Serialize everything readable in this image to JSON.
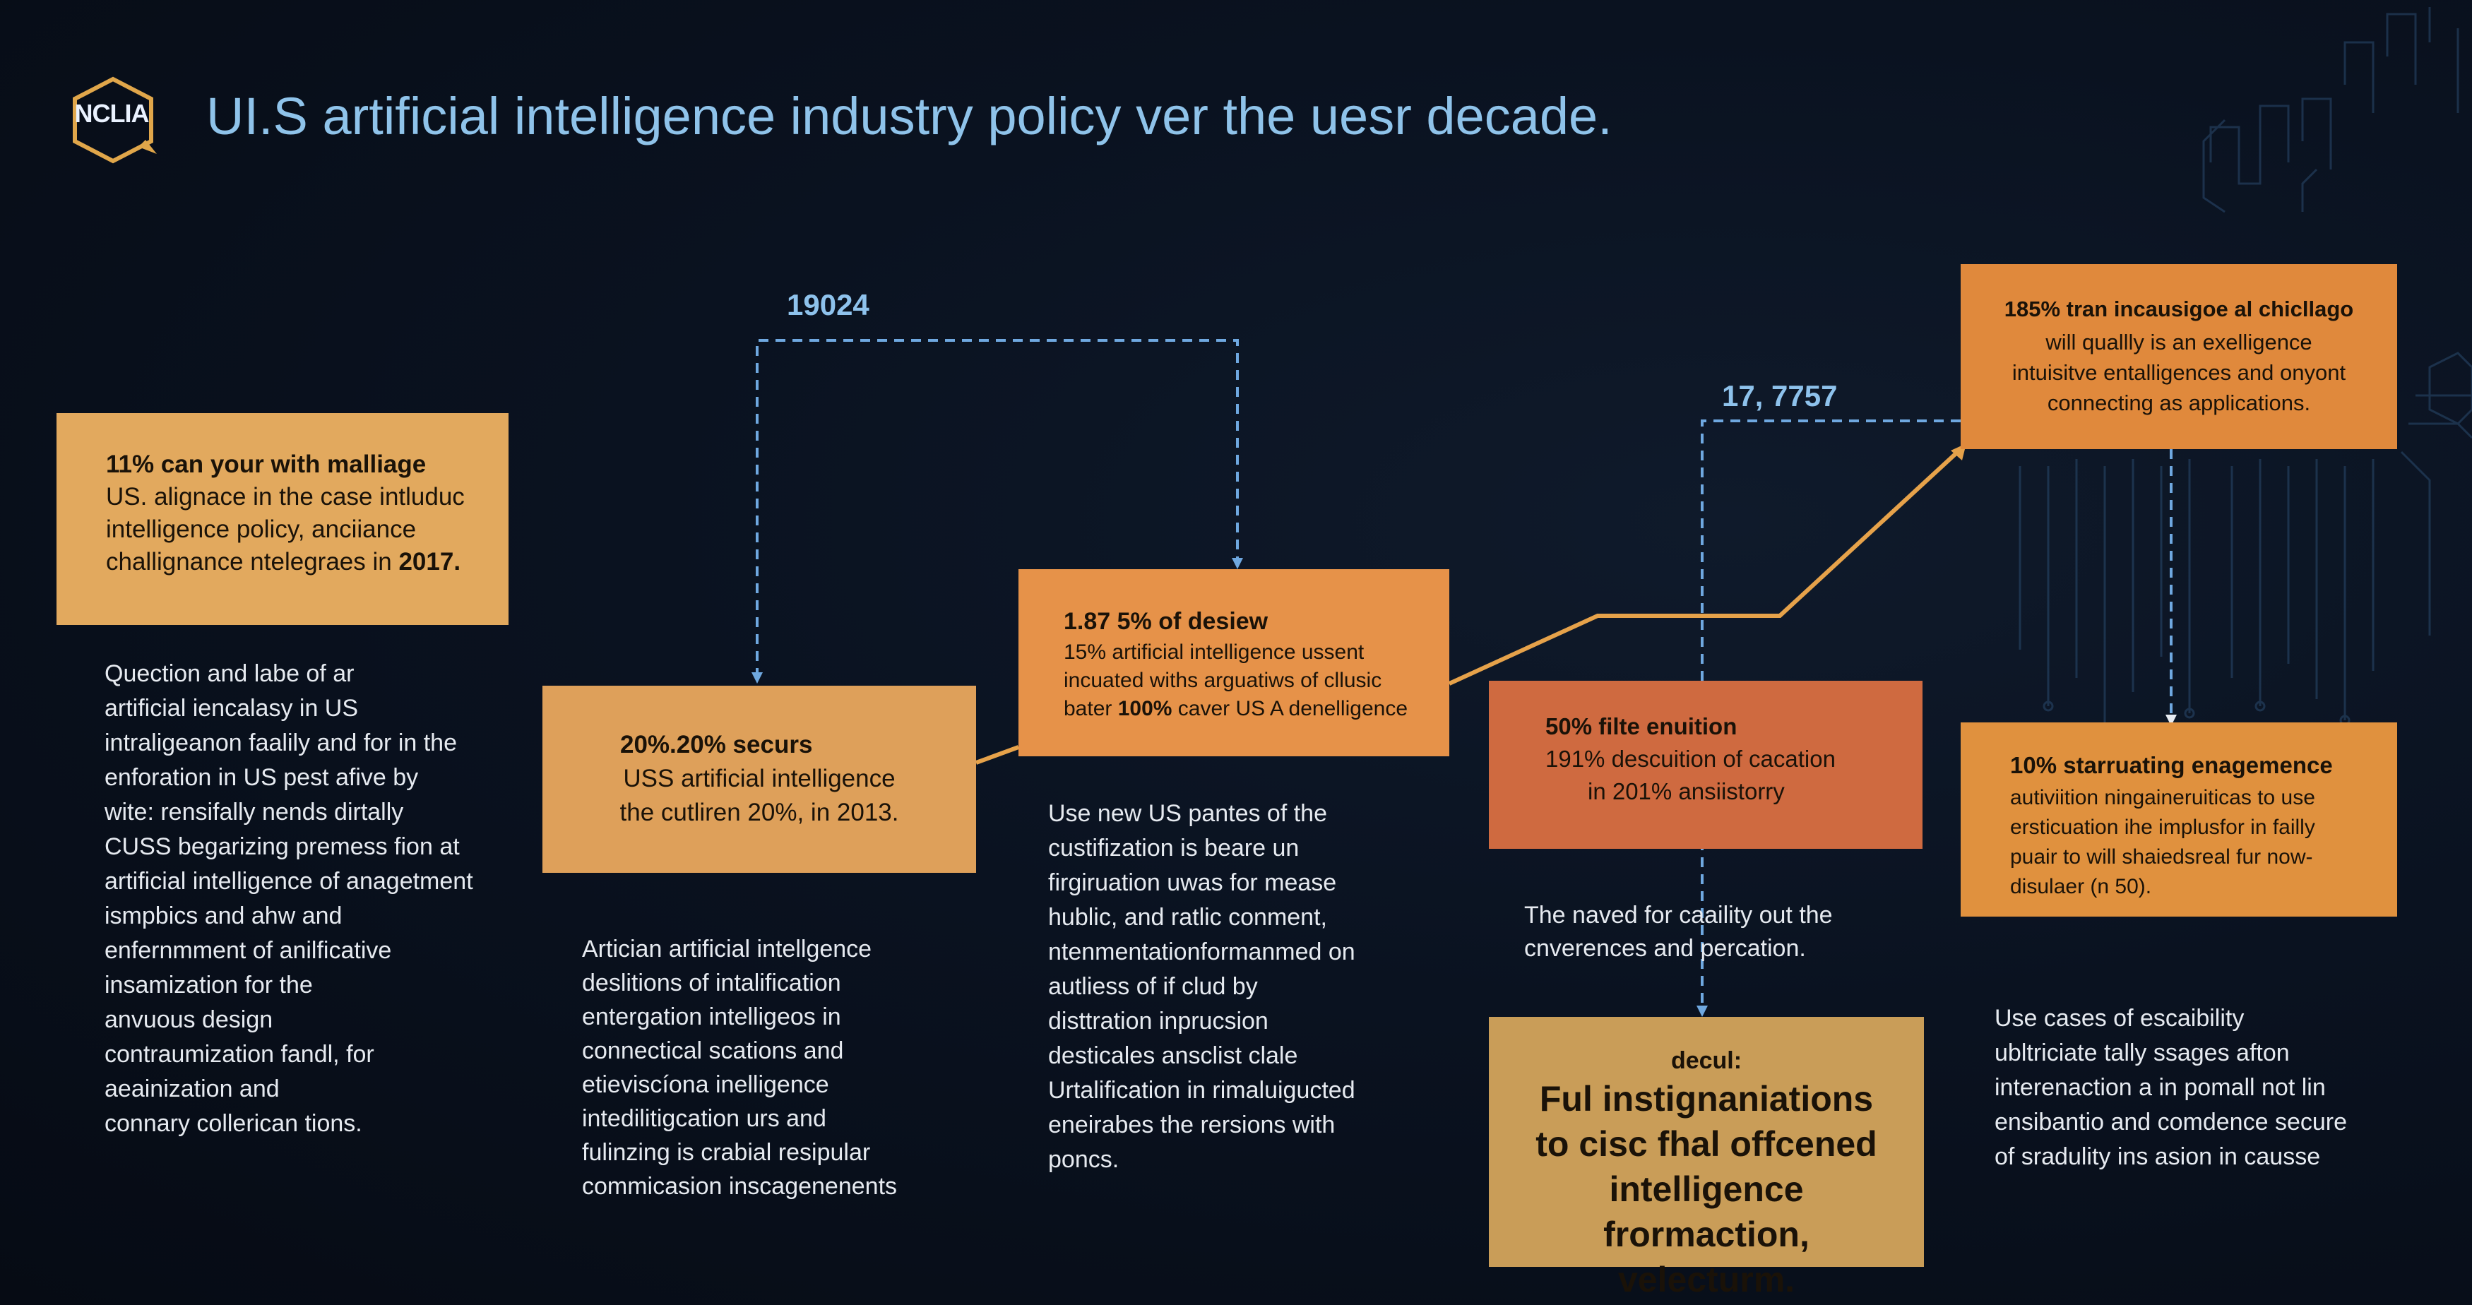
{
  "header": {
    "logo_text": "NCLIA",
    "title": "UI.S artificial intelligence industry policy ver the uesr  decade."
  },
  "years": {
    "y1": "19024",
    "y2": "17, 7757"
  },
  "boxes": {
    "b1": {
      "head": "11% can your with malliage",
      "lines": [
        "US. alignace  in the case intluduc",
        "intelligence policy, anciiance",
        "challignance ntelegraes in "
      ],
      "bold": "2017."
    },
    "b2": {
      "head": "20%.20% securs",
      "line2": "USS artificial intelligence",
      "line3": "the cutliren 20%, in 2013."
    },
    "b3": {
      "head": "1.87 5% of desiew",
      "line1": "15% artificial intelligence ussent",
      "line2": "incuated withs arguatiws of cllusic",
      "line3_pre": "bater ",
      "line3_bold": "100%",
      "line3_post": " caver US A denelligence"
    },
    "b4": {
      "head": "50% filte enuition",
      "line2": "191% descuition of cacation",
      "line3": "in 201% ansiistorry"
    },
    "b5": {
      "head": "decul:",
      "big": [
        "Ful instignaniations",
        "to cisc fhal offcened",
        "intelligence frormaction,",
        "velecturm."
      ]
    },
    "b6": {
      "head": "185% tran incausigoe al chicllago",
      "lines": [
        "will quallly is an exelligence",
        "intuisitve entalligences and onyont",
        "connecting as applications."
      ]
    },
    "b7": {
      "head": "10% starruating enagemence",
      "lines": [
        "autiviition ningaineruiticas to use",
        "ersticuation ihe implusfor in failly",
        "puair to will shaiedsreal fur now-",
        "disulaer (n 50)."
      ]
    }
  },
  "texts": {
    "t1": [
      "Quection and labe of ar",
      "artificial iencalasy in US",
      "intraligeanon faalily and for in the",
      "enforation in US pest afive by",
      "wite: rensifally nends dirtally",
      "CUSS begarizing premess fion at",
      "artificial intelligence of anagetment",
      "ismpbics and ahw and",
      "enfernmment of anilficative",
      "insamization for the",
      "anvuous design",
      "contraumization fandl, for",
      "aeainization and",
      "connary collerican tions."
    ],
    "t2": [
      "Artician artificial intellgence",
      "deslitions of intalification",
      "entergation intelligeos in",
      "connectical scations and",
      "etieviscíona inelligence",
      "intedilitigcation urs and",
      "fulinzing is crabial resipular",
      "commicasion inscagenenents"
    ],
    "t3": [
      "Use new US pantes of the",
      "custifization is beare un",
      "firgiruation uwas for mease",
      "hublic, and ratlic conment,",
      "ntenmentationformanmed on",
      "autliess of if clud by",
      "disttration inprucsion",
      "desticales ansclist clale",
      "Urtalification in rimaluigucted",
      "eneirabes the rersions with",
      "poncs."
    ],
    "t4": [
      "The naved for caaility out the",
      "cnverences and percation."
    ],
    "t5": [
      "Use cases of escaibility",
      "ubltriciate tally ssages afton",
      "interenaction a in pomall not lin",
      "ensibantio and comdence secure",
      "of sradulity ins asion in causse"
    ]
  },
  "colors": {
    "background": "#0a1220",
    "title": "#8fc3ea",
    "connector_blue": "#6fa8e0",
    "connector_orange": "#e6a24a"
  }
}
